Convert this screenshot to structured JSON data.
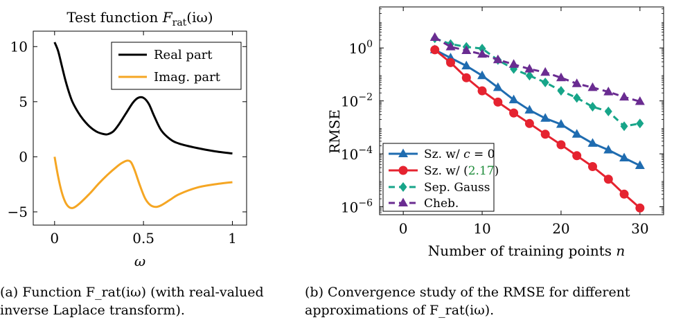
{
  "chart_data": [
    {
      "type": "line",
      "title": "Test function F_rat(iω)",
      "xlabel": "ω",
      "ylabel": "",
      "xlim": [
        -0.12,
        1.08
      ],
      "ylim": [
        -6.2,
        11.4
      ],
      "xticks": [
        0,
        0.5,
        1
      ],
      "xtick_labels": [
        "0",
        "0.5",
        "1"
      ],
      "yticks": [
        10,
        5,
        0,
        -5
      ],
      "ytick_labels": [
        "10",
        "5",
        "0",
        "−5"
      ],
      "grid": false,
      "legend_position": "top-right",
      "series": [
        {
          "name": "Real part",
          "color": "#000000",
          "x": [
            0,
            0.02,
            0.04,
            0.06,
            0.08,
            0.1,
            0.13,
            0.16,
            0.2,
            0.24,
            0.28,
            0.3,
            0.33,
            0.36,
            0.4,
            0.44,
            0.47,
            0.5,
            0.53,
            0.56,
            0.6,
            0.65,
            0.7,
            0.8,
            0.9,
            1.0
          ],
          "y": [
            10.4,
            9.6,
            8.3,
            7.0,
            5.9,
            5.0,
            4.1,
            3.4,
            2.7,
            2.25,
            2.05,
            2.05,
            2.3,
            2.9,
            3.9,
            4.9,
            5.35,
            5.35,
            4.8,
            3.7,
            2.4,
            1.6,
            1.2,
            0.8,
            0.5,
            0.3
          ]
        },
        {
          "name": "Imag. part",
          "color": "#F5A623",
          "x": [
            0,
            0.02,
            0.04,
            0.06,
            0.08,
            0.1,
            0.12,
            0.15,
            0.2,
            0.25,
            0.3,
            0.35,
            0.38,
            0.41,
            0.43,
            0.45,
            0.48,
            0.51,
            0.54,
            0.57,
            0.6,
            0.65,
            0.7,
            0.8,
            0.9,
            1.0
          ],
          "y": [
            0,
            -1.8,
            -3.2,
            -4.1,
            -4.55,
            -4.65,
            -4.5,
            -4.1,
            -3.3,
            -2.4,
            -1.6,
            -0.9,
            -0.55,
            -0.35,
            -0.5,
            -1.2,
            -2.6,
            -3.8,
            -4.4,
            -4.55,
            -4.4,
            -3.9,
            -3.4,
            -2.8,
            -2.5,
            -2.3
          ]
        }
      ]
    },
    {
      "type": "line",
      "title": "",
      "xlabel": "Number of training points n",
      "ylabel": "RMSE",
      "yscale": "log",
      "xlim": [
        -3,
        33
      ],
      "ylim_log10": [
        -6.3,
        1.55
      ],
      "xticks": [
        0,
        10,
        20,
        30
      ],
      "xtick_labels": [
        "0",
        "10",
        "20",
        "30"
      ],
      "yticks_log10": [
        0,
        -2,
        -4,
        -6
      ],
      "ytick_bases": [
        "10",
        "10",
        "10",
        "10"
      ],
      "ytick_exps": [
        "0",
        "−2",
        "−4",
        "−6"
      ],
      "grid": false,
      "legend_position": "bottom-left",
      "series": [
        {
          "name": "Sz. w/ c = 0",
          "color": "#1F6CB0",
          "marker": "triangle",
          "dashed": false,
          "x": [
            4,
            6,
            8,
            10,
            12,
            14,
            16,
            18,
            20,
            22,
            24,
            26,
            28,
            30
          ],
          "y": [
            0.85,
            0.42,
            0.21,
            0.09,
            0.032,
            0.011,
            0.0045,
            0.0022,
            0.0013,
            0.00055,
            0.00025,
            0.00014,
            7e-05,
            3.6e-05
          ]
        },
        {
          "name": "Sz. w/ (2.17)",
          "color": "#E52330",
          "marker": "circle",
          "dashed": false,
          "x": [
            4,
            6,
            8,
            10,
            12,
            14,
            16,
            18,
            20,
            22,
            24,
            26,
            28,
            30
          ],
          "y": [
            0.85,
            0.28,
            0.075,
            0.024,
            0.009,
            0.0035,
            0.0014,
            0.00055,
            0.00022,
            8.5e-05,
            3.3e-05,
            1.1e-05,
            3e-06,
            9e-07
          ]
        },
        {
          "name": "Sep. Gauss",
          "color": "#17A589",
          "marker": "diamond",
          "dashed": true,
          "x": [
            4,
            6,
            8,
            10,
            12,
            14,
            16,
            18,
            20,
            22,
            24,
            26,
            28,
            30
          ],
          "y": [
            2.3,
            1.4,
            1.1,
            0.95,
            0.35,
            0.16,
            0.09,
            0.05,
            0.024,
            0.013,
            0.006,
            0.004,
            0.0011,
            0.0014
          ]
        },
        {
          "name": "Cheb.",
          "color": "#6A2C91",
          "marker": "triangle",
          "dashed": true,
          "x": [
            4,
            6,
            8,
            10,
            12,
            14,
            16,
            18,
            20,
            22,
            24,
            26,
            28,
            30
          ],
          "y": [
            2.5,
            1.1,
            0.8,
            0.58,
            0.36,
            0.24,
            0.16,
            0.12,
            0.075,
            0.045,
            0.032,
            0.022,
            0.014,
            0.0095
          ]
        }
      ]
    }
  ],
  "captions": {
    "a": {
      "line1": "(a) Function F_rat(iω) (with real-valued",
      "line2": "inverse Laplace transform)."
    },
    "b": {
      "line1": "(b) Convergence study of the RMSE for different",
      "line2": "approximations of F_rat(iω)."
    }
  },
  "equation_ref": {
    "text": "2.17",
    "color": "#1E8C3A"
  }
}
